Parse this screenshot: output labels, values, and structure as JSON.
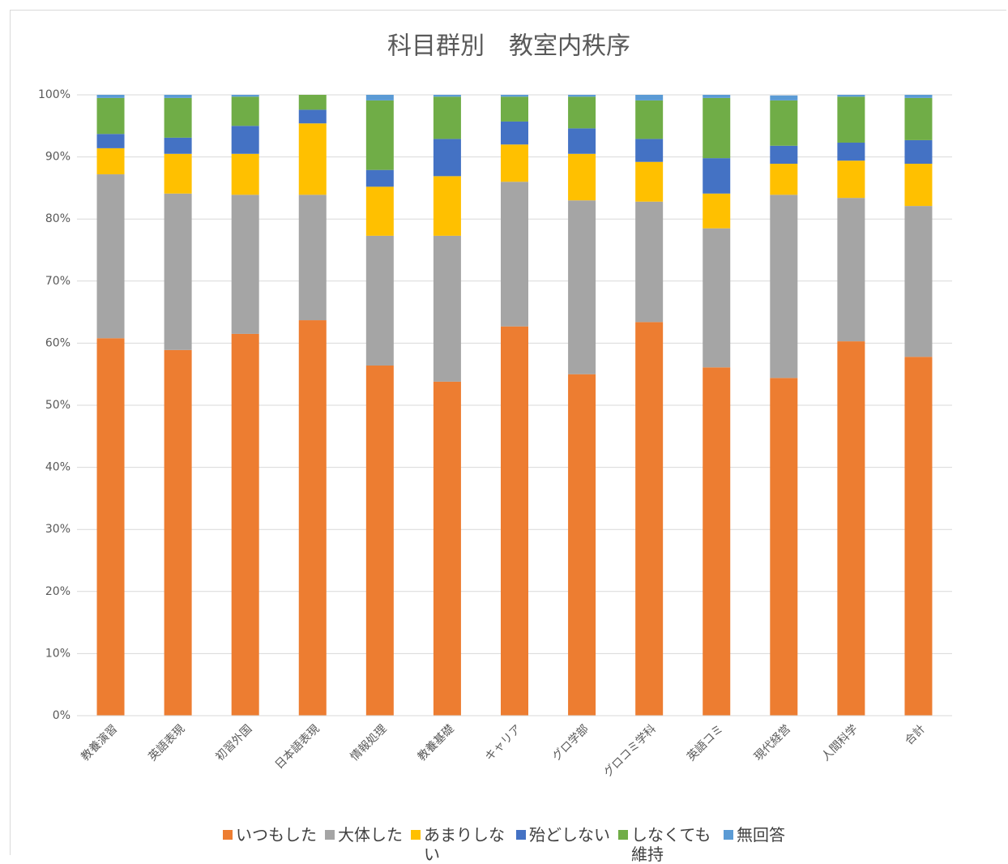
{
  "chart_data": {
    "type": "stacked-bar",
    "title": "科目群別　教室内秩序",
    "categories": [
      "教養演習",
      "英語表現",
      "初習外国",
      "日本語表現",
      "情報処理",
      "教養基礎",
      "キャリア",
      "グロ学部",
      "グロコミ学科",
      "英語コミ",
      "現代経営",
      "人間科学",
      "合計"
    ],
    "series": [
      {
        "name": "いつもした",
        "color": "#ed7d31",
        "values": [
          60.8,
          58.9,
          61.5,
          63.7,
          56.4,
          53.8,
          62.7,
          55.0,
          63.4,
          56.1,
          54.4,
          60.3,
          57.8
        ]
      },
      {
        "name": "大体した",
        "color": "#a5a5a5",
        "values": [
          26.4,
          25.2,
          22.4,
          20.2,
          20.9,
          23.5,
          23.3,
          28.0,
          19.4,
          22.4,
          29.5,
          23.1,
          24.3
        ]
      },
      {
        "name": "あまりしない",
        "color": "#ffc000",
        "values": [
          4.2,
          6.4,
          6.6,
          11.5,
          7.9,
          9.6,
          6.0,
          7.5,
          6.4,
          5.6,
          5.0,
          6.0,
          6.8
        ]
      },
      {
        "name": "殆どしない",
        "color": "#4472c4",
        "values": [
          2.3,
          2.6,
          4.5,
          2.2,
          2.7,
          6.0,
          3.7,
          4.1,
          3.7,
          5.7,
          2.9,
          2.9,
          3.8
        ]
      },
      {
        "name": "しなくても維持",
        "color": "#70ad47",
        "values": [
          5.8,
          6.4,
          4.7,
          2.4,
          11.2,
          6.8,
          4.0,
          5.1,
          6.2,
          9.7,
          7.3,
          7.4,
          6.8
        ]
      },
      {
        "name": "無回答",
        "color": "#5b9bd5",
        "values": [
          0.5,
          0.5,
          0.3,
          0,
          0.9,
          0.3,
          0.3,
          0.3,
          0.9,
          0.5,
          0.8,
          0.3,
          0.5
        ]
      }
    ],
    "ylim": [
      0,
      100
    ],
    "yticks": [
      {
        "value": 0,
        "label": "0%"
      },
      {
        "value": 10,
        "label": "10%"
      },
      {
        "value": 20,
        "label": "20%"
      },
      {
        "value": 30,
        "label": "30%"
      },
      {
        "value": 40,
        "label": "40%"
      },
      {
        "value": 50,
        "label": "50%"
      },
      {
        "value": 60,
        "label": "60%"
      },
      {
        "value": 70,
        "label": "70%"
      },
      {
        "value": 80,
        "label": "80%"
      },
      {
        "value": 90,
        "label": "90%"
      },
      {
        "value": 100,
        "label": "100%"
      }
    ],
    "grid": true,
    "legend": "bottom"
  }
}
